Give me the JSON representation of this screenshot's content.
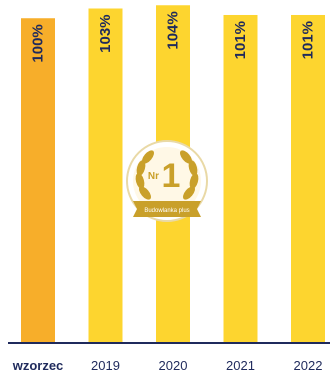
{
  "chart_data": {
    "type": "bar",
    "categories": [
      "wzorzec",
      "2019",
      "2020",
      "2021",
      "2022"
    ],
    "values": [
      100,
      103,
      104,
      101,
      101
    ],
    "data_labels": [
      "100%",
      "103%",
      "104%",
      "101%",
      "101%"
    ],
    "ylim": [
      0,
      105
    ],
    "grid": false,
    "legend": "none",
    "colors": {
      "reference_bar": "#f7ae2a",
      "bar": "#fdd52f",
      "text": "#1f2a5c",
      "axis": "#1f2a5c",
      "badge_gold": "#c9a02a"
    }
  },
  "badge": {
    "icon": "number-one-laurel-badge-icon",
    "number_prefix": "Nr",
    "number": "1",
    "caption": "Budowlanka plus"
  }
}
